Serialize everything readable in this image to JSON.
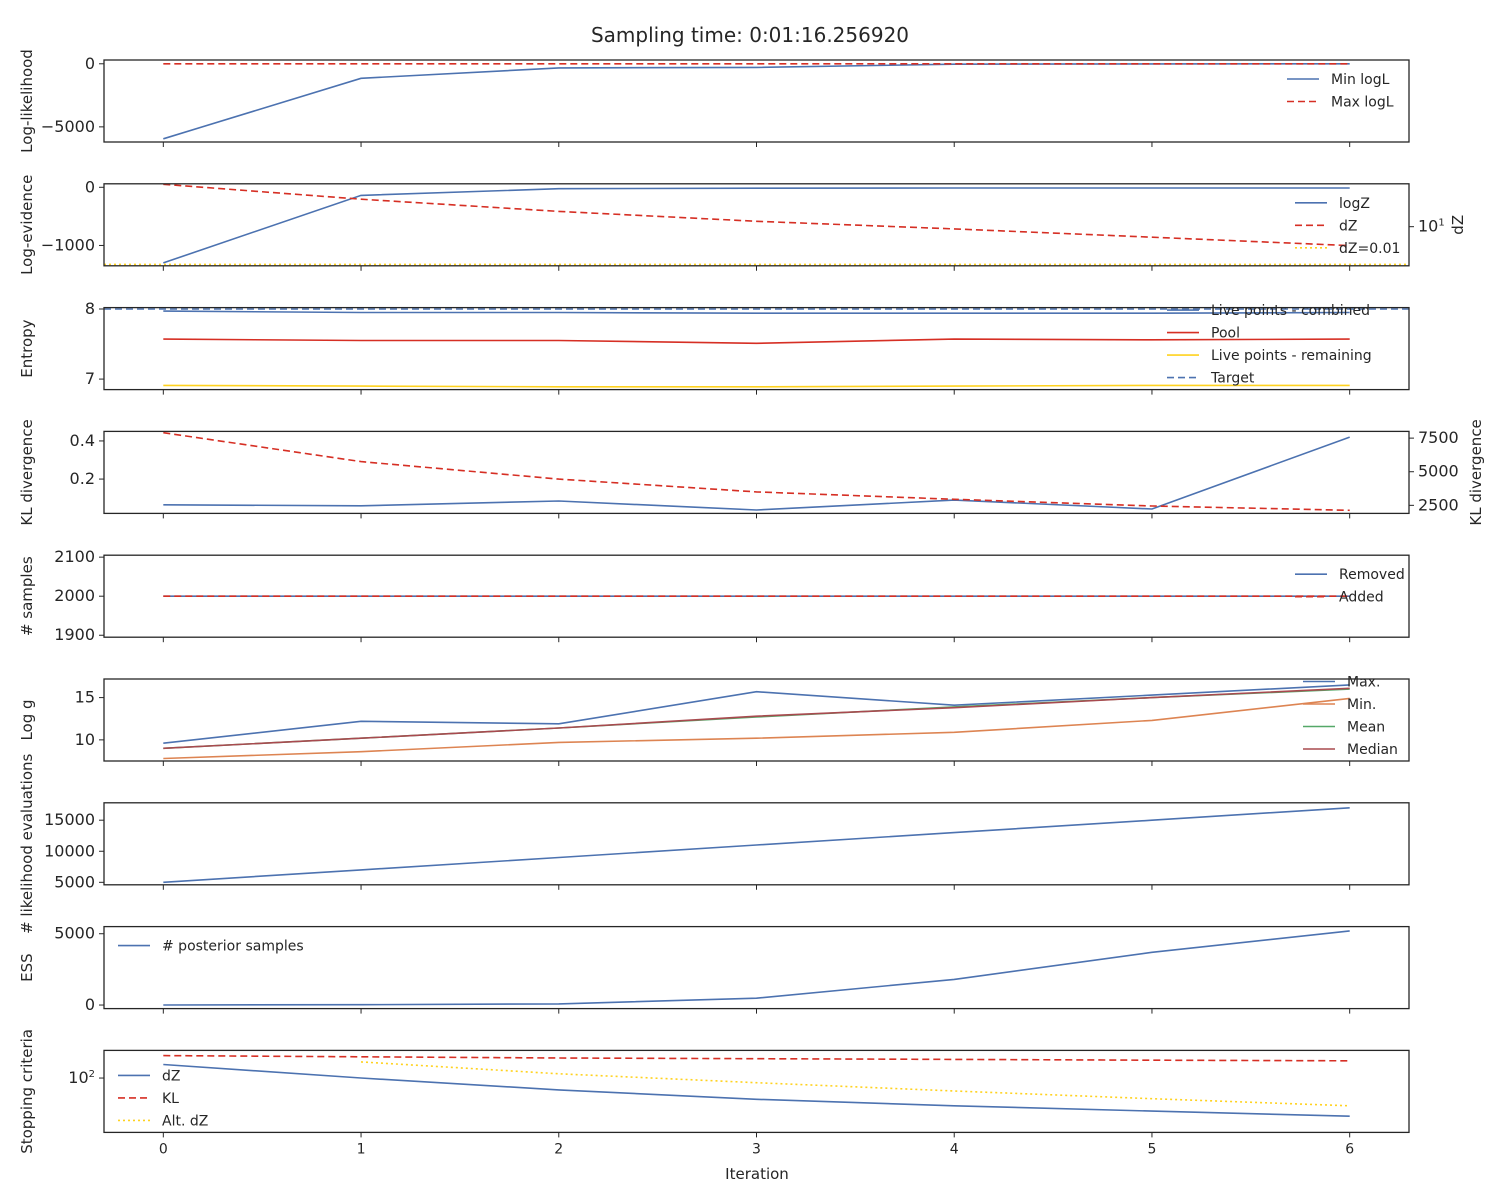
{
  "title": "Sampling time: 0:01:16.256920",
  "xlabel": "Iteration",
  "x_ticks": [
    "0",
    "1",
    "2",
    "3",
    "4",
    "5",
    "6"
  ],
  "colors": {
    "blue": "#4c72b0",
    "red": "#d62f24",
    "yellow": "#ffd21f",
    "orange": "#dd8452",
    "green": "#55a868",
    "brown": "#a84a4f"
  },
  "chart_data": [
    {
      "type": "line",
      "ylabel": "Log-likelihood",
      "x": [
        0,
        1,
        2,
        3,
        4,
        5,
        6
      ],
      "ylim": [
        -6200,
        300
      ],
      "yticks": [
        {
          "v": 0,
          "label": "0"
        },
        {
          "v": -5000,
          "label": "−5000"
        }
      ],
      "series": [
        {
          "name": "Min logL",
          "color": "blue",
          "dash": "solid",
          "values": [
            -5950,
            -1150,
            -330,
            -290,
            -30,
            -10,
            -5
          ]
        },
        {
          "name": "Max logL",
          "color": "red",
          "dash": "dashed",
          "values": [
            -5,
            -4,
            -3,
            -3,
            -2,
            -2,
            -2
          ]
        }
      ],
      "legend": {
        "position": "upper-right"
      }
    },
    {
      "type": "line",
      "ylabel": "Log-evidence",
      "ylabel_right": "dZ",
      "x": [
        0,
        1,
        2,
        3,
        4,
        5,
        6
      ],
      "ylim": [
        -1350,
        60
      ],
      "yticks": [
        {
          "v": 0,
          "label": "0"
        },
        {
          "v": -1000,
          "label": "−1000"
        }
      ],
      "y2_scale": "log",
      "y2lim": [
        1.5,
        80
      ],
      "y2ticks": [
        {
          "v": 10,
          "label": "10",
          "sup": "1"
        }
      ],
      "series": [
        {
          "name": "logZ",
          "color": "blue",
          "dash": "solid",
          "values": [
            -1300,
            -140,
            -25,
            -15,
            -12,
            -12,
            -12
          ]
        },
        {
          "name": "dZ",
          "color": "red",
          "dash": "dashed",
          "axis": "y2",
          "values": [
            78,
            38,
            21,
            13,
            9,
            6,
            4
          ]
        },
        {
          "name": "dZ=0.01",
          "color": "yellow",
          "dash": "dotted",
          "axis": "y2",
          "hline": 1.6
        }
      ],
      "legend": {
        "position": "upper-right"
      }
    },
    {
      "type": "line",
      "ylabel": "Entropy",
      "x": [
        0,
        1,
        2,
        3,
        4,
        5,
        6
      ],
      "ylim": [
        6.85,
        8.02
      ],
      "yticks": [
        {
          "v": 8,
          "label": "8"
        },
        {
          "v": 7,
          "label": "7"
        }
      ],
      "series": [
        {
          "name": "Live points - combined",
          "color": "blue",
          "dash": "solid",
          "values": [
            7.97,
            7.95,
            7.95,
            7.94,
            7.94,
            7.94,
            7.95
          ]
        },
        {
          "name": "Pool",
          "color": "red",
          "dash": "solid",
          "values": [
            7.57,
            7.55,
            7.55,
            7.51,
            7.57,
            7.56,
            7.57
          ]
        },
        {
          "name": "Live points - remaining",
          "color": "yellow",
          "dash": "solid",
          "values": [
            6.91,
            6.9,
            6.89,
            6.89,
            6.9,
            6.91,
            6.91
          ]
        },
        {
          "name": "Target",
          "color": "blue",
          "dash": "dashed",
          "hline": 8.0
        }
      ],
      "legend": {
        "position": "lower-right"
      }
    },
    {
      "type": "line",
      "ylabel": "KL divergence",
      "ylabel_right": "KL divergence",
      "x": [
        0,
        1,
        2,
        3,
        4,
        5,
        6
      ],
      "ylim": [
        0.02,
        0.45
      ],
      "yticks": [
        {
          "v": 0.4,
          "label": "0.4"
        },
        {
          "v": 0.2,
          "label": "0.2"
        }
      ],
      "y2lim": [
        1900,
        8000
      ],
      "y2ticks": [
        {
          "v": 7500,
          "label": "7500"
        },
        {
          "v": 5000,
          "label": "5000"
        },
        {
          "v": 2500,
          "label": "2500"
        }
      ],
      "series": [
        {
          "name": "KL divergence",
          "color": "blue",
          "dash": "solid",
          "values": [
            0.065,
            0.06,
            0.085,
            0.038,
            0.09,
            0.043,
            0.42
          ]
        },
        {
          "name": "KL divergence",
          "color": "red",
          "dash": "dashed",
          "axis": "y2",
          "values": [
            7900,
            5750,
            4450,
            3500,
            2950,
            2450,
            2130
          ]
        }
      ]
    },
    {
      "type": "line",
      "ylabel": "# samples",
      "x": [
        0,
        1,
        2,
        3,
        4,
        5,
        6
      ],
      "ylim": [
        1895,
        2105
      ],
      "yticks": [
        {
          "v": 2100,
          "label": "2100"
        },
        {
          "v": 2000,
          "label": "2000"
        },
        {
          "v": 1900,
          "label": "1900"
        }
      ],
      "series": [
        {
          "name": "Removed",
          "color": "blue",
          "dash": "solid",
          "values": [
            2000,
            2000,
            2000,
            2000,
            2000,
            2000,
            2000
          ]
        },
        {
          "name": "Added",
          "color": "red",
          "dash": "dashed",
          "values": [
            2000,
            2000,
            2000,
            2000,
            2000,
            2000,
            2000
          ]
        }
      ],
      "legend": {
        "position": "upper-right"
      }
    },
    {
      "type": "line",
      "ylabel": "Log g",
      "x": [
        0,
        1,
        2,
        3,
        4,
        5,
        6
      ],
      "ylim": [
        7.5,
        17.2
      ],
      "yticks": [
        {
          "v": 15,
          "label": "15"
        },
        {
          "v": 10,
          "label": "10"
        }
      ],
      "series": [
        {
          "name": "Max.",
          "color": "blue",
          "dash": "solid",
          "values": [
            9.6,
            12.2,
            11.9,
            15.7,
            14.1,
            15.3,
            16.5
          ]
        },
        {
          "name": "Min.",
          "color": "orange",
          "dash": "solid",
          "values": [
            7.8,
            8.6,
            9.7,
            10.2,
            10.9,
            12.3,
            14.9
          ]
        },
        {
          "name": "Mean",
          "color": "green",
          "dash": "solid",
          "values": [
            9.0,
            10.2,
            11.4,
            12.7,
            13.9,
            15.0,
            16.0
          ]
        },
        {
          "name": "Median",
          "color": "brown",
          "dash": "solid",
          "values": [
            9.0,
            10.2,
            11.4,
            12.8,
            13.8,
            15.0,
            16.1
          ]
        }
      ],
      "legend": {
        "position": "lower-right"
      }
    },
    {
      "type": "line",
      "ylabel": "# likelihood evaluations",
      "x": [
        0,
        1,
        2,
        3,
        4,
        5,
        6
      ],
      "ylim": [
        4600,
        17800
      ],
      "yticks": [
        {
          "v": 15000,
          "label": "15000"
        },
        {
          "v": 10000,
          "label": "10000"
        },
        {
          "v": 5000,
          "label": "5000"
        }
      ],
      "series": [
        {
          "name": "# likelihood evaluations",
          "color": "blue",
          "dash": "solid",
          "values": [
            5000,
            7000,
            9000,
            11000,
            13000,
            15000,
            17000
          ]
        }
      ]
    },
    {
      "type": "line",
      "ylabel": "ESS",
      "x": [
        0,
        1,
        2,
        3,
        4,
        5,
        6
      ],
      "ylim": [
        -250,
        5500
      ],
      "yticks": [
        {
          "v": 5000,
          "label": "5000"
        },
        {
          "v": 0,
          "label": "0"
        }
      ],
      "series": [
        {
          "name": "# posterior samples",
          "color": "blue",
          "dash": "solid",
          "values": [
            5,
            20,
            80,
            480,
            1800,
            3700,
            5200
          ]
        }
      ],
      "legend": {
        "position": "upper-left"
      }
    },
    {
      "type": "line",
      "ylabel": "Stopping criteria",
      "x": [
        0,
        1,
        2,
        3,
        4,
        5,
        6
      ],
      "y_scale": "log",
      "ylim": [
        3.5,
        550
      ],
      "yticks": [
        {
          "v": 100,
          "label": "10",
          "sup": "2"
        }
      ],
      "series": [
        {
          "name": "dZ",
          "color": "blue",
          "dash": "solid",
          "values": [
            230,
            100,
            48,
            27,
            18,
            13,
            9.5
          ]
        },
        {
          "name": "KL",
          "color": "red",
          "dash": "dashed",
          "values": [
            400,
            370,
            345,
            330,
            315,
            300,
            290
          ]
        },
        {
          "name": "Alt. dZ",
          "color": "yellow",
          "dash": "dotted",
          "x": [
            1,
            2,
            3,
            4,
            5,
            6
          ],
          "values": [
            270,
            130,
            75,
            45,
            28,
            18
          ]
        }
      ],
      "legend": {
        "position": "lower-left"
      }
    }
  ]
}
